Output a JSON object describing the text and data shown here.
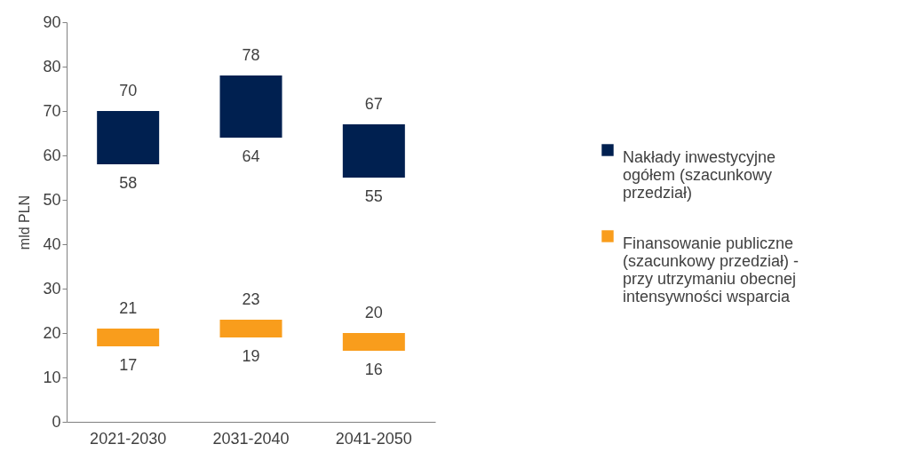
{
  "chart_data": {
    "type": "bar",
    "ylabel": "mld PLN",
    "categories": [
      "2021-2030",
      "2031-2040",
      "2041-2050"
    ],
    "series": [
      {
        "name": "Nakłady inwestycyjne ogółem (szacunkowy przedział)",
        "color": "#002050",
        "base": [
          58,
          64,
          55
        ],
        "values": [
          12,
          14,
          12
        ]
      },
      {
        "name": "Finansowanie publiczne (szacunkowy przedział) - przy utrzymaniu obecnej intensywności wsparcia",
        "color": "#f99d1c",
        "base": [
          17,
          19,
          16
        ],
        "values": [
          4,
          4,
          4
        ]
      }
    ],
    "ylim": [
      0,
      90
    ],
    "yticks": [
      0,
      10,
      20,
      30,
      40,
      50,
      60,
      70,
      80,
      90
    ],
    "legend": "right",
    "annotations": [
      {
        "text": "70",
        "x": "2021-2030",
        "y": 70
      },
      {
        "text": "58",
        "x": "2021-2030",
        "y": 58
      },
      {
        "text": "78",
        "x": "2031-2040",
        "y": 78
      },
      {
        "text": "64",
        "x": "2031-2040",
        "y": 64
      },
      {
        "text": "67",
        "x": "2041-2050",
        "y": 67
      },
      {
        "text": "55",
        "x": "2041-2050",
        "y": 55
      },
      {
        "text": "21",
        "x": "2021-2030",
        "y": 21
      },
      {
        "text": "17",
        "x": "2021-2030",
        "y": 17
      },
      {
        "text": "23",
        "x": "2031-2040",
        "y": 23
      },
      {
        "text": "19",
        "x": "2031-2040",
        "y": 19
      },
      {
        "text": "20",
        "x": "2041-2050",
        "y": 20
      },
      {
        "text": "16",
        "x": "2041-2050",
        "y": 16
      }
    ]
  }
}
